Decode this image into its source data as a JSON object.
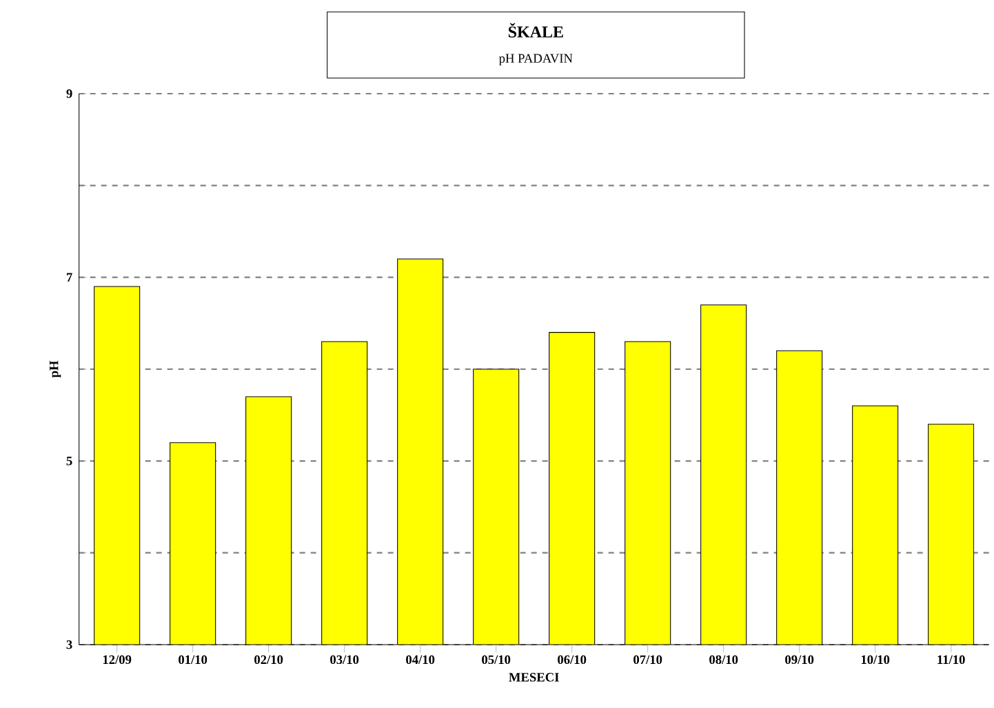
{
  "chart_data": {
    "type": "bar",
    "title": "ŠKALE",
    "subtitle": "pH PADAVIN",
    "xlabel": "MESECI",
    "ylabel": "pH",
    "categories": [
      "12/09",
      "01/10",
      "02/10",
      "03/10",
      "04/10",
      "05/10",
      "06/10",
      "07/10",
      "08/10",
      "09/10",
      "10/10",
      "11/10"
    ],
    "values": [
      6.9,
      5.2,
      5.7,
      6.3,
      7.2,
      6.0,
      6.4,
      6.3,
      6.7,
      6.2,
      5.6,
      5.4
    ],
    "color": "#ffff00",
    "ylim": [
      3,
      9
    ],
    "yticks": [
      3,
      {
        "value": 4,
        "label": null
      },
      5,
      {
        "value": 6,
        "label": null
      },
      7,
      {
        "value": 8,
        "label": null
      },
      9
    ],
    "grid": "y"
  }
}
